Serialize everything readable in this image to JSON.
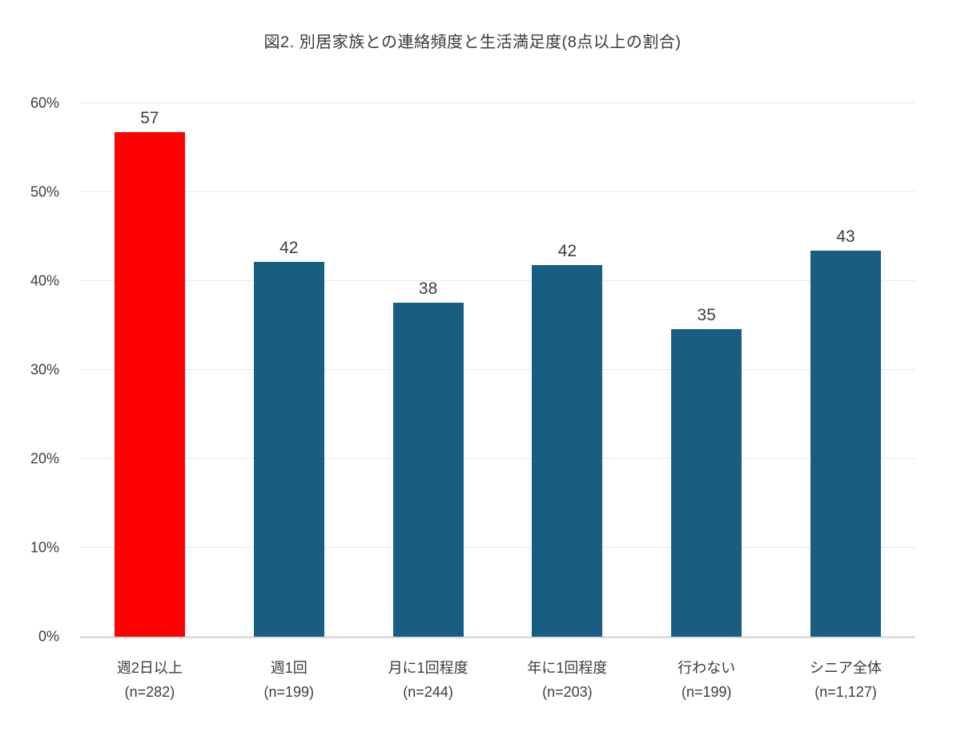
{
  "title": "図2. 別居家族との連絡頻度と生活満足度(8点以上の割合)",
  "colors": {
    "highlight_bar": "#ff0000",
    "default_bar": "#175e82",
    "gridline": "#e8e8e8",
    "axis_line": "#d9d9d9",
    "text": "#3c3c3c",
    "background": "#ffffff"
  },
  "chart_data": {
    "type": "bar",
    "title": "図2. 別居家族との連絡頻度と生活満足度(8点以上の割合)",
    "categories": [
      "週2日以上",
      "週1回",
      "月に1回程度",
      "年に1回程度",
      "行わない",
      "シニア全体"
    ],
    "counts": [
      "(n=282)",
      "(n=199)",
      "(n=244)",
      "(n=203)",
      "(n=199)",
      "(n=1,127)"
    ],
    "values": [
      57,
      42,
      38,
      42,
      35,
      43
    ],
    "precise_values": [
      56.8,
      42.2,
      37.6,
      41.8,
      34.6,
      43.4
    ],
    "bar_colors": [
      "#ff0000",
      "#175e82",
      "#175e82",
      "#175e82",
      "#175e82",
      "#175e82"
    ],
    "xlabel": "",
    "ylabel": "",
    "ylim": [
      0,
      60
    ],
    "yticks": [
      "0%",
      "10%",
      "20%",
      "30%",
      "40%",
      "50%",
      "60%"
    ],
    "grid": true,
    "legend": false
  }
}
